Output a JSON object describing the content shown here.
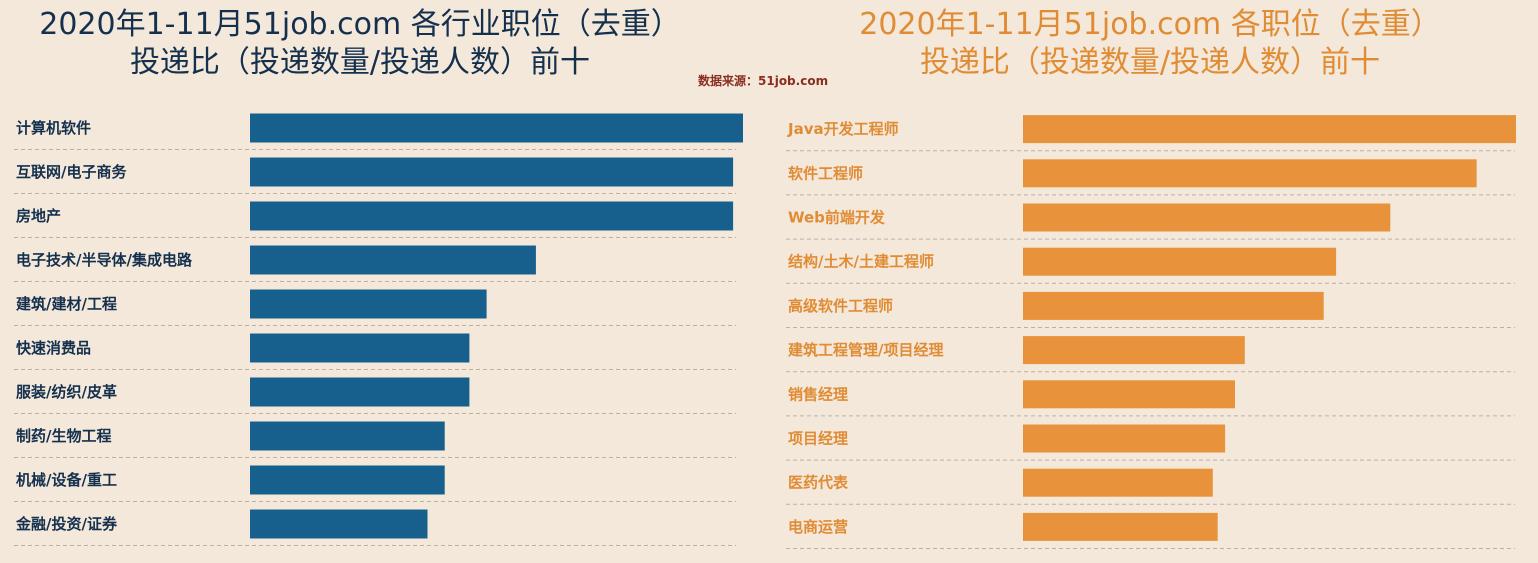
{
  "source_note": "数据来源：51job.com",
  "chart_data": [
    {
      "type": "bar",
      "orientation": "horizontal",
      "title": "2020年1-11月51job.com 各行业职位（去重）投递比（投递数量/投递人数）前十",
      "title_lines": [
        "2020年1-11月51job.com 各行业职位（去重）",
        "投递比（投递数量/投递人数）前十"
      ],
      "categories": [
        "计算机软件",
        "互联网/电子商务",
        "房地产",
        "电子技术/半导体/集成电路",
        "建筑/建材/工程",
        "快速消费品",
        "服装/纺织/皮革",
        "制药/生物工程",
        "机械/设备/重工",
        "金融/投资/证券"
      ],
      "values": [
        100,
        98,
        98,
        58,
        48,
        44.5,
        44.5,
        39.5,
        39.5,
        36
      ],
      "xlim": [
        0,
        100
      ],
      "grid": false,
      "color": "#175f8c",
      "title_color": "#14304d",
      "label_color": "#14304d"
    },
    {
      "type": "bar",
      "orientation": "horizontal",
      "title": "2020年1-11月51job.com 各职位（去重）投递比（投递数量/投递人数）前十",
      "title_lines": [
        "2020年1-11月51job.com 各职位（去重）",
        "投递比（投递数量/投递人数）前十"
      ],
      "categories": [
        "Java开发工程师",
        "软件工程师",
        "Web前端开发",
        "结构/土木/土建工程师",
        "高级软件工程师",
        "建筑工程管理/项目经理",
        "销售经理",
        "项目经理",
        "医药代表",
        "电商运营"
      ],
      "values": [
        100,
        92,
        74.5,
        63.5,
        61,
        45,
        43,
        41,
        38.5,
        39.5
      ],
      "xlim": [
        0,
        100
      ],
      "grid": false,
      "color": "#e8923b",
      "title_color": "#e08c35",
      "label_color": "#e08c35"
    }
  ]
}
